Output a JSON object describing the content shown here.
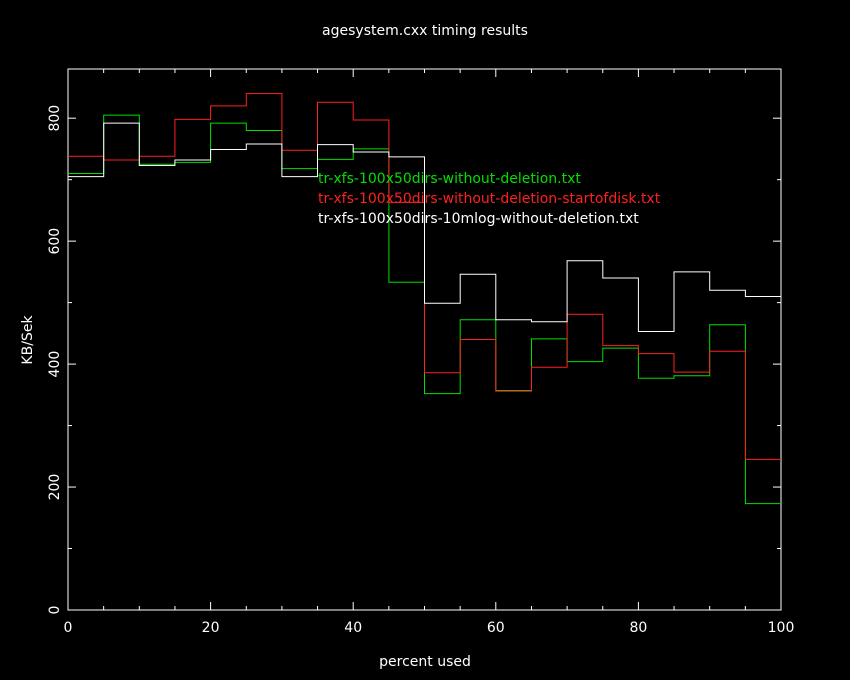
{
  "chart_data": {
    "type": "line",
    "step": true,
    "title": "agesystem.cxx timing results",
    "xlabel": "percent used",
    "ylabel": "KB/Sek",
    "xlim": [
      0,
      100
    ],
    "ylim": [
      0,
      880
    ],
    "x_ticks": [
      0,
      20,
      40,
      60,
      80,
      100
    ],
    "x_tick_labels": [
      "0",
      "20",
      "40",
      "60",
      "80",
      "100"
    ],
    "y_ticks": [
      0,
      200,
      400,
      600,
      800
    ],
    "y_tick_labels": [
      "0",
      "200",
      "400",
      "600",
      "800"
    ],
    "minor_x_ticks": [
      5,
      10,
      15,
      25,
      30,
      35,
      45,
      50,
      55,
      65,
      70,
      75,
      85,
      90,
      95
    ],
    "minor_y_ticks": [
      100,
      300,
      500,
      700
    ],
    "grid": false,
    "legend_position": "center",
    "x_edges": [
      0,
      5,
      10,
      15,
      20,
      25,
      30,
      35,
      40,
      45,
      50,
      55,
      60,
      65,
      70,
      75,
      80,
      85,
      90,
      95,
      100
    ],
    "series": [
      {
        "name": "tr-xfs-100x50dirs-without-deletion.txt",
        "color": "#00e000",
        "values": [
          710,
          805,
          725,
          728,
          792,
          780,
          718,
          733,
          750,
          533,
          352,
          472,
          357,
          441,
          404,
          426,
          377,
          381,
          464,
          173
        ]
      },
      {
        "name": "tr-xfs-100x50dirs-without-deletion-startofdisk.txt",
        "color": "#ff2020",
        "values": [
          738,
          732,
          738,
          798,
          820,
          840,
          748,
          826,
          797,
          663,
          386,
          440,
          356,
          395,
          481,
          430,
          417,
          387,
          421,
          245
        ]
      },
      {
        "name": "tr-xfs-100x50dirs-10mlog-without-deletion.txt",
        "color": "#ffffff",
        "values": [
          705,
          792,
          723,
          732,
          749,
          758,
          705,
          757,
          745,
          737,
          499,
          546,
          472,
          469,
          568,
          540,
          453,
          550,
          520,
          510
        ]
      }
    ]
  }
}
